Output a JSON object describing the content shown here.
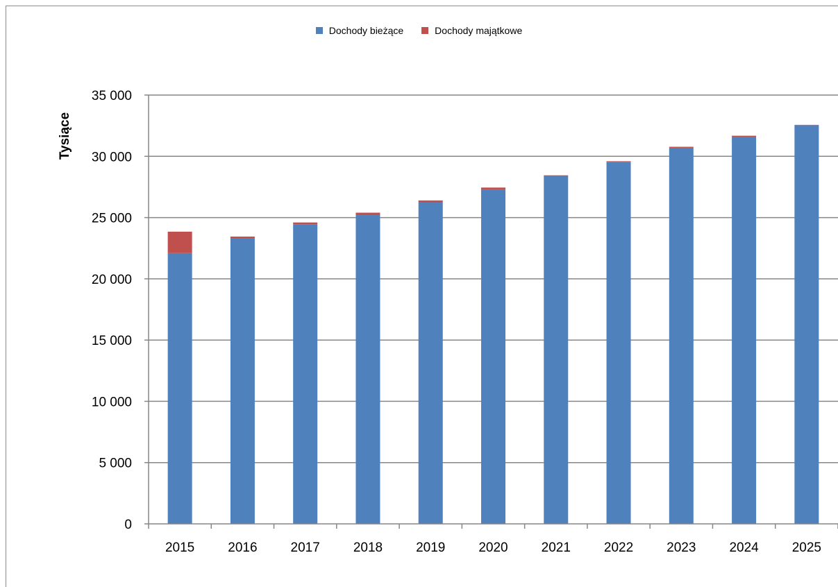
{
  "chart_data": {
    "type": "bar",
    "stacked": true,
    "categories": [
      "2015",
      "2016",
      "2017",
      "2018",
      "2019",
      "2020",
      "2021",
      "2022",
      "2023",
      "2024",
      "2025"
    ],
    "series": [
      {
        "name": "Dochody bieżące",
        "color": "#4f81bd",
        "values": [
          22100,
          23300,
          24450,
          25200,
          26250,
          27250,
          28400,
          29550,
          30700,
          31600,
          32550
        ]
      },
      {
        "name": "Dochody majątkowe",
        "color": "#c0504d",
        "values": [
          1750,
          150,
          150,
          200,
          150,
          200,
          50,
          50,
          80,
          80,
          20
        ]
      }
    ],
    "ylabel": "Tysiące",
    "xlabel": "",
    "ylim": [
      0,
      35000
    ],
    "yticks": [
      0,
      5000,
      10000,
      15000,
      20000,
      25000,
      30000,
      35000
    ],
    "ytick_labels": [
      "0",
      "5 000",
      "10 000",
      "15 000",
      "20 000",
      "25 000",
      "30 000",
      "35 000"
    ],
    "grid": true,
    "legend_position": "top"
  }
}
